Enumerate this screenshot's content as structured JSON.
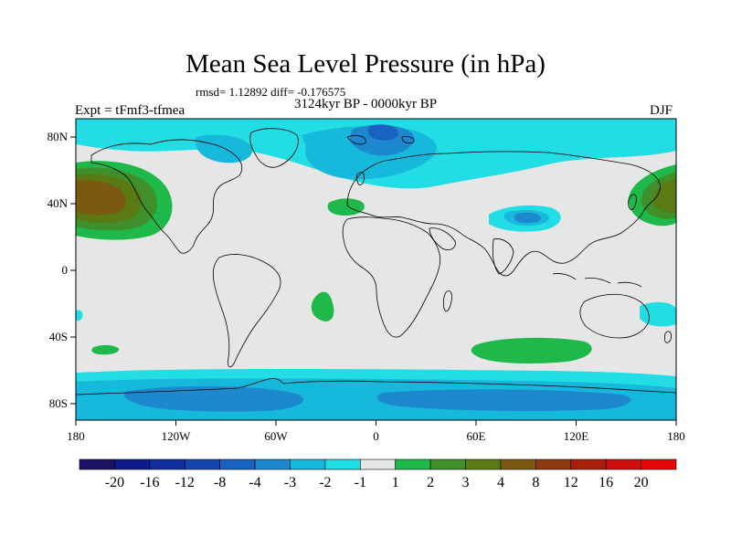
{
  "title": "Mean Sea Level Pressure (in hPa)",
  "stats": "rmsd= 1.12892 diff= -0.176575",
  "experiment": "Expt = tFmf3-tfmea",
  "period": "3124kyr BP - 0000kyr BP",
  "season": "DJF",
  "lat_ticks": [
    "80N",
    "40N",
    "0",
    "40S",
    "80S"
  ],
  "lon_ticks": [
    "180",
    "120W",
    "60W",
    "0",
    "60E",
    "120E",
    "180"
  ],
  "colorbar": {
    "labels": [
      "-20",
      "-16",
      "-12",
      "-8",
      "-4",
      "-3",
      "-2",
      "-1",
      "1",
      "2",
      "3",
      "4",
      "8",
      "12",
      "16",
      "20"
    ],
    "colors": [
      "#1c1264",
      "#0e1a8a",
      "#0f2e9c",
      "#1446ab",
      "#1a62bf",
      "#1e88cf",
      "#16b8dc",
      "#22dde4",
      "#e6e6e6",
      "#1fb84a",
      "#3f8f2a",
      "#5a7a14",
      "#7a5a10",
      "#8e3a10",
      "#a8200c",
      "#cc1010",
      "#e60808"
    ]
  },
  "colors": {
    "background": "#e6e6e6",
    "frame": "#000000",
    "coastline": "#000000"
  }
}
